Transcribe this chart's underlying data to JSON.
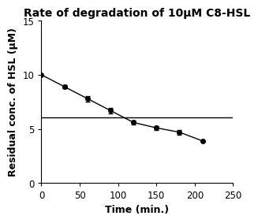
{
  "title": "Rate of degradation of 10μM C8-HSL",
  "xlabel": "Time (min.)",
  "ylabel": "Residual conc. of HSL (μM)",
  "x": [
    0,
    30,
    60,
    90,
    120,
    150,
    180,
    210
  ],
  "y": [
    10.0,
    8.9,
    7.8,
    6.7,
    5.6,
    5.1,
    4.7,
    3.9
  ],
  "yerr": [
    0.0,
    0.15,
    0.25,
    0.25,
    0.2,
    0.2,
    0.2,
    0.0
  ],
  "hline_y": 6.1,
  "xlim": [
    0,
    250
  ],
  "ylim": [
    0,
    15
  ],
  "xticks": [
    0,
    50,
    100,
    150,
    200,
    250
  ],
  "yticks": [
    0,
    5,
    10,
    15
  ],
  "line_color": "#000000",
  "marker_color": "#000000",
  "hline_color": "#000000",
  "bg_color": "#ffffff",
  "title_fontsize": 10,
  "label_fontsize": 9,
  "tick_fontsize": 8.5
}
